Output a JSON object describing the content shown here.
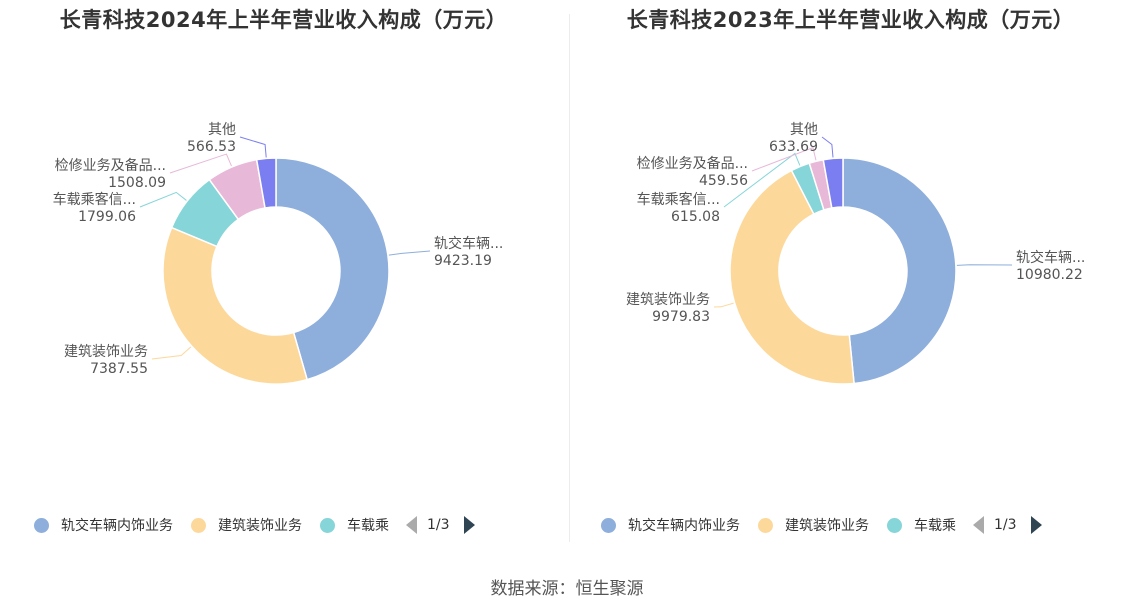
{
  "colors": [
    "#8eaedc",
    "#fdd89b",
    "#86d5d8",
    "#e8b8d8",
    "#7b7ef0"
  ],
  "source": "数据来源：恒生聚源",
  "chart_data": [
    {
      "type": "pie",
      "title": "长青科技2024年上半年营业收入构成（万元）",
      "categories": [
        "轨交车辆内饰业务",
        "建筑装饰业务",
        "车载乘客信息系统",
        "检修业务及备品备件",
        "其他"
      ],
      "label_names": [
        "轨交车辆...",
        "建筑装饰业务",
        "车载乘客信...",
        "检修业务及备品...",
        "其他"
      ],
      "values": [
        9423.19,
        7387.55,
        1799.06,
        1508.09,
        566.53
      ],
      "value_labels": [
        "9423.19",
        "7387.55",
        "1799.06",
        "1508.09",
        "566.53"
      ],
      "legend": {
        "items": [
          "轨交车辆内饰业务",
          "建筑装饰业务",
          "车载乘"
        ],
        "page": "1/3",
        "position": "bottom"
      }
    },
    {
      "type": "pie",
      "title": "长青科技2023年上半年营业收入构成（万元）",
      "categories": [
        "轨交车辆内饰业务",
        "建筑装饰业务",
        "车载乘客信息系统",
        "检修业务及备品备件",
        "其他"
      ],
      "label_names": [
        "轨交车辆...",
        "建筑装饰业务",
        "车载乘客信...",
        "检修业务及备品...",
        "其他"
      ],
      "values": [
        10980.22,
        9979.83,
        615.08,
        459.56,
        633.69
      ],
      "value_labels": [
        "10980.22",
        "9979.83",
        "615.08",
        "459.56",
        "633.69"
      ],
      "legend": {
        "items": [
          "轨交车辆内饰业务",
          "建筑装饰业务",
          "车载乘"
        ],
        "page": "1/3",
        "position": "bottom"
      }
    }
  ]
}
